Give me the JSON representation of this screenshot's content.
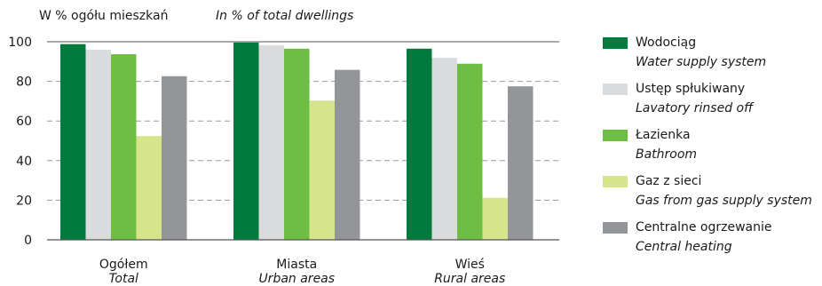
{
  "header": {
    "unit_pl": "W % ogółu mieszkań",
    "unit_en": "In % of total dwellings"
  },
  "colors": {
    "wodociag": "#007A3D",
    "ustep": "#DADBDD",
    "lazienka": "#6EBE44",
    "gaz": "#D6E58C",
    "ogrzewanie": "#939598",
    "grid": "#9a9a9a",
    "axis": "#555555"
  },
  "chart_data": {
    "type": "bar",
    "categories": [
      "Ogółem",
      "Miasta",
      "Wieś"
    ],
    "categories_en": [
      "Total",
      "Urban areas",
      "Rural areas"
    ],
    "ylim": [
      0,
      100
    ],
    "yticks": [
      0,
      20,
      40,
      60,
      80,
      100
    ],
    "grid": "horizontal dashed",
    "legend_position": "right",
    "series": [
      {
        "name": "Wodociąg",
        "name_en": "Water supply system",
        "color_key": "wodociag",
        "values": [
          98.8,
          99.6,
          96.5
        ]
      },
      {
        "name": "Ustęp spłukiwany",
        "name_en": "Lavatory rinsed off",
        "color_key": "ustep",
        "values": [
          96.0,
          98.3,
          91.9
        ]
      },
      {
        "name": "Łazienka",
        "name_en": "Bathroom",
        "color_key": "lazienka",
        "values": [
          93.7,
          96.5,
          88.9
        ]
      },
      {
        "name": "Gaz z sieci",
        "name_en": "Gas from gas supply system",
        "color_key": "gaz",
        "values": [
          52.4,
          70.3,
          21.2
        ]
      },
      {
        "name": "Centralne ogrzewanie",
        "name_en": "Central heating",
        "color_key": "ogrzewanie",
        "values": [
          82.6,
          85.8,
          77.5
        ]
      }
    ]
  }
}
